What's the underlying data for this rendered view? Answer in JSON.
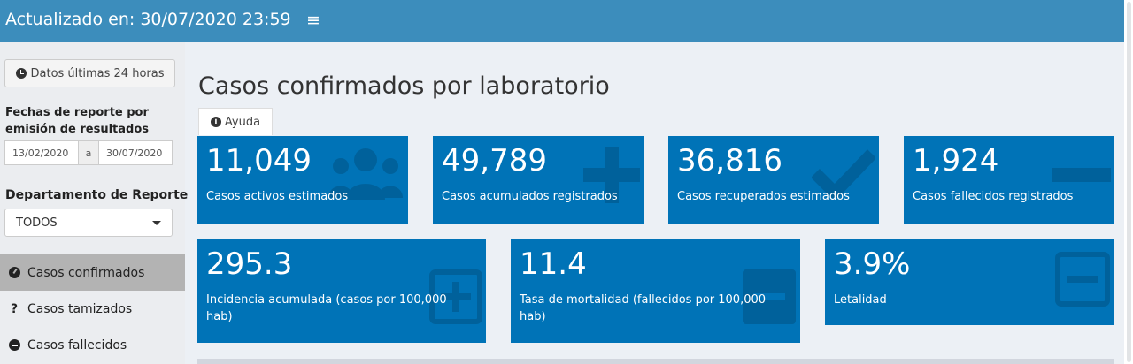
{
  "header": {
    "title": "Actualizado en: 30/07/2020 23:59",
    "menu_icon": "hamburger-icon"
  },
  "sidebar": {
    "last24_button": "Datos últimas 24 horas",
    "dates_label": "Fechas de reporte por emisión de resultados",
    "date_start": "13/02/2020",
    "date_sep": "a",
    "date_end": "30/07/2020",
    "department_label": "Departamento de Reporte",
    "department_value": "TODOS",
    "nav": [
      {
        "label": "Casos confirmados",
        "icon": "dashboard-icon",
        "active": true
      },
      {
        "label": "Casos tamizados",
        "icon": "question-icon",
        "active": false
      },
      {
        "label": "Casos fallecidos",
        "icon": "minus-circle-icon",
        "active": false
      }
    ]
  },
  "main": {
    "title": "Casos confirmados por laboratorio",
    "help_tab": "Ayuda",
    "stat_boxes": [
      {
        "value": "11,049",
        "label": "Casos activos estimados",
        "icon": "users-icon"
      },
      {
        "value": "49,789",
        "label": "Casos acumulados registrados",
        "icon": "plus-icon"
      },
      {
        "value": "36,816",
        "label": "Casos recuperados estimados",
        "icon": "check-icon"
      },
      {
        "value": "1,924",
        "label": "Casos fallecidos registrados",
        "icon": "minus-icon"
      },
      {
        "value": "295.3",
        "label": "Incidencia acumulada (casos por 100,000 hab)",
        "icon": "plus-square-icon"
      },
      {
        "value": "11.4",
        "label": "Tasa de mortalidad (fallecidos por 100,000 hab)",
        "icon": "minus-square-icon"
      },
      {
        "value": "3.9%",
        "label": "Letalidad",
        "icon": "minus-square-icon"
      }
    ]
  },
  "colors": {
    "header": "#3c8dbc",
    "box": "#0073b7",
    "sidebar": "#ebedf0",
    "sidebar_active": "#b3b3b3",
    "content_bg": "#ecf0f5"
  }
}
